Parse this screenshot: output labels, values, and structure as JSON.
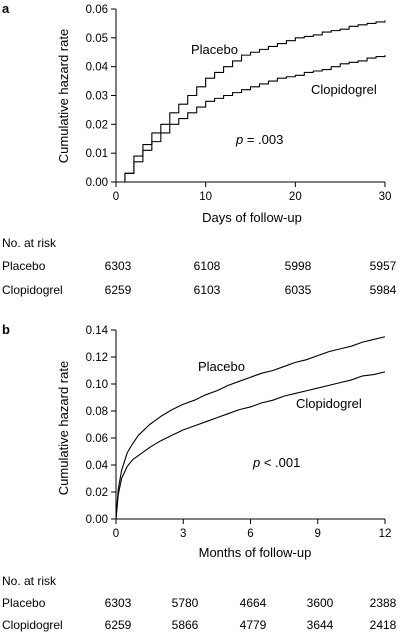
{
  "chart_data": [
    {
      "panel": "a",
      "type": "line",
      "step": true,
      "xlabel": "Days of follow-up",
      "ylabel": "Cumulative hazard rate",
      "xlim": [
        0,
        30
      ],
      "ylim": [
        0,
        0.06
      ],
      "xticks": [
        0,
        10,
        20,
        30
      ],
      "xtick_labels": [
        "0",
        "10",
        "20",
        "30"
      ],
      "yticks": [
        0,
        0.01,
        0.02,
        0.03,
        0.04,
        0.05,
        0.06
      ],
      "ytick_labels": [
        "0.00",
        "0.01",
        "0.02",
        "0.03",
        "0.04",
        "0.05",
        "0.06"
      ],
      "grid": false,
      "annotation": {
        "prefix": "p",
        "text": " = .003"
      },
      "series": [
        {
          "name": "Placebo",
          "x": [
            0,
            1,
            2,
            3,
            4,
            5,
            6,
            7,
            8,
            9,
            10,
            11,
            12,
            13,
            14,
            15,
            16,
            17,
            18,
            19,
            20,
            21,
            22,
            23,
            24,
            25,
            26,
            27,
            28,
            29,
            30
          ],
          "y": [
            0,
            0.003,
            0.009,
            0.013,
            0.017,
            0.02,
            0.024,
            0.027,
            0.03,
            0.033,
            0.036,
            0.038,
            0.04,
            0.042,
            0.044,
            0.045,
            0.046,
            0.047,
            0.048,
            0.049,
            0.05,
            0.0505,
            0.051,
            0.052,
            0.0525,
            0.053,
            0.054,
            0.0545,
            0.055,
            0.0555,
            0.056
          ]
        },
        {
          "name": "Clopidogrel",
          "x": [
            0,
            1,
            2,
            3,
            4,
            5,
            6,
            7,
            8,
            9,
            10,
            11,
            12,
            13,
            14,
            15,
            16,
            17,
            18,
            19,
            20,
            21,
            22,
            23,
            24,
            25,
            26,
            27,
            28,
            29,
            30
          ],
          "y": [
            0,
            0.003,
            0.007,
            0.011,
            0.014,
            0.017,
            0.02,
            0.022,
            0.024,
            0.026,
            0.028,
            0.029,
            0.03,
            0.031,
            0.032,
            0.033,
            0.034,
            0.035,
            0.036,
            0.0365,
            0.037,
            0.038,
            0.0385,
            0.039,
            0.04,
            0.041,
            0.0415,
            0.042,
            0.043,
            0.0435,
            0.044
          ]
        }
      ],
      "risk_table": {
        "title": "No. at risk",
        "rows": [
          {
            "label": "Placebo",
            "values": [
              "6303",
              "6108",
              "5998",
              "5957"
            ]
          },
          {
            "label": "Clopidogrel",
            "values": [
              "6259",
              "6103",
              "6035",
              "5984"
            ]
          }
        ]
      }
    },
    {
      "panel": "b",
      "type": "line",
      "step": false,
      "xlabel": "Months of follow-up",
      "ylabel": "Cumulative hazard rate",
      "xlim": [
        0,
        12
      ],
      "ylim": [
        0,
        0.14
      ],
      "xticks": [
        0,
        3,
        6,
        9,
        12
      ],
      "xtick_labels": [
        "0",
        "3",
        "6",
        "9",
        "12"
      ],
      "yticks": [
        0,
        0.02,
        0.04,
        0.06,
        0.08,
        0.1,
        0.12,
        0.14
      ],
      "ytick_labels": [
        "0.00",
        "0.02",
        "0.04",
        "0.06",
        "0.08",
        "0.10",
        "0.12",
        "0.14"
      ],
      "grid": false,
      "annotation": {
        "prefix": "p",
        "text": " < .001"
      },
      "series": [
        {
          "name": "Placebo",
          "x": [
            0,
            0.1,
            0.25,
            0.5,
            0.75,
            1,
            1.5,
            2,
            2.5,
            3,
            3.5,
            4,
            4.5,
            5,
            5.5,
            6,
            6.5,
            7,
            7.5,
            8,
            8.5,
            9,
            9.5,
            10,
            10.5,
            11,
            11.5,
            12
          ],
          "y": [
            0,
            0.022,
            0.036,
            0.049,
            0.056,
            0.062,
            0.07,
            0.076,
            0.081,
            0.085,
            0.088,
            0.092,
            0.095,
            0.099,
            0.102,
            0.105,
            0.108,
            0.11,
            0.113,
            0.116,
            0.118,
            0.121,
            0.124,
            0.126,
            0.128,
            0.131,
            0.133,
            0.135
          ]
        },
        {
          "name": "Clopidogrel",
          "x": [
            0,
            0.1,
            0.25,
            0.5,
            0.75,
            1,
            1.5,
            2,
            2.5,
            3,
            3.5,
            4,
            4.5,
            5,
            5.5,
            6,
            6.5,
            7,
            7.5,
            8,
            8.5,
            9,
            9.5,
            10,
            10.5,
            11,
            11.5,
            12
          ],
          "y": [
            0,
            0.018,
            0.03,
            0.039,
            0.044,
            0.047,
            0.053,
            0.058,
            0.062,
            0.066,
            0.069,
            0.072,
            0.075,
            0.078,
            0.081,
            0.083,
            0.086,
            0.088,
            0.091,
            0.093,
            0.095,
            0.097,
            0.099,
            0.101,
            0.103,
            0.106,
            0.107,
            0.109
          ]
        }
      ],
      "risk_table": {
        "title": "No. at risk",
        "rows": [
          {
            "label": "Placebo",
            "values": [
              "6303",
              "5780",
              "4664",
              "3600",
              "2388"
            ]
          },
          {
            "label": "Clopidogrel",
            "values": [
              "6259",
              "5866",
              "4779",
              "3644",
              "2418"
            ]
          }
        ]
      }
    }
  ]
}
